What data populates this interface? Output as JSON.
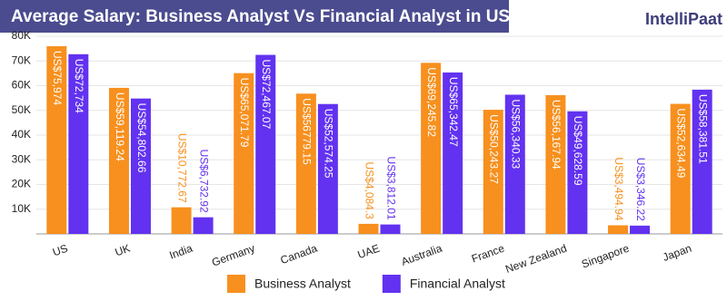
{
  "chart_data": {
    "type": "bar",
    "title": "Average Salary: Business Analyst Vs Financial Analyst in US$",
    "logo": "IntelliPaat",
    "categories": [
      "US",
      "UK",
      "India",
      "Germany",
      "Canada",
      "UAE",
      "Australia",
      "France",
      "New Zealand",
      "Singapore",
      "Japan"
    ],
    "series": [
      {
        "name": "Business Analyst",
        "color": "#f7901e",
        "values": [
          75974,
          59119.24,
          10772.67,
          65071.79,
          56779.15,
          4084.3,
          69245.82,
          50243.27,
          56167.94,
          3494.94,
          52634.49
        ],
        "value_labels": [
          "US$75,974",
          "US$59,119.24",
          "US$10,772.67",
          "US$65,071.79",
          "US$56779.15",
          "US$4,084.3",
          "US$69,245.82",
          "US$50,243.27",
          "US$56,167.94",
          "US$3,494.94",
          "US$52,634.49"
        ]
      },
      {
        "name": "Financial Analyst",
        "color": "#6232f0",
        "values": [
          72734,
          54802.66,
          6732.92,
          72467.07,
          52574.25,
          3812.01,
          65342.47,
          56340.33,
          49628.59,
          3346.22,
          58381.51
        ],
        "value_labels": [
          "US$72,734",
          "US$54,802.66",
          "US$6,732.92",
          "US$72,467.07",
          "US$52,574.25",
          "US$3,812.01",
          "US$65,342.47",
          "US$56,340.33",
          "US$49,628.59",
          "US$3,346.22",
          "US$58,381.51"
        ]
      }
    ],
    "ylim": [
      0,
      80000
    ],
    "yticks": [
      {
        "value": 10000,
        "label": "10K"
      },
      {
        "value": 20000,
        "label": "20K"
      },
      {
        "value": 30000,
        "label": "30K"
      },
      {
        "value": 40000,
        "label": "40K"
      },
      {
        "value": 50000,
        "label": "50K"
      },
      {
        "value": 60000,
        "label": "60K"
      },
      {
        "value": 70000,
        "label": "70K"
      },
      {
        "value": 80000,
        "label": "80K"
      }
    ],
    "grid": true,
    "legend": "bottom"
  }
}
